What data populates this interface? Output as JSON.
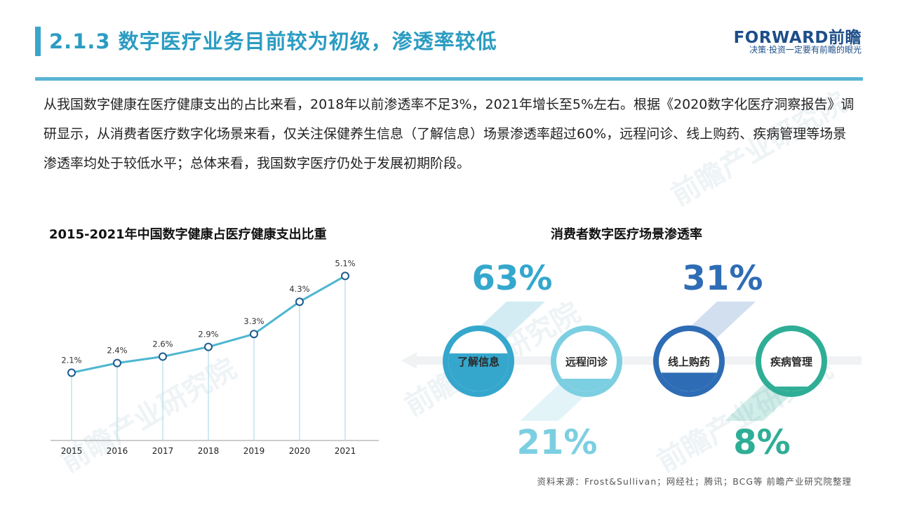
{
  "header": {
    "title": "2.1.3 数字医疗业务目前较为初级，渗透率较低",
    "logo_main": "FORWARD前瞻",
    "logo_sub": "决策·投资一定要有前瞻的眼光"
  },
  "body": {
    "paragraph": "从我国数字健康在医疗健康支出的占比来看，2018年以前渗透率不足3%，2021年增长至5%左右。根据《2020数字化医疗洞察报告》调研显示，从消费者医疗数字化场景来看，仅关注保健养生信息（了解信息）场景渗透率超过60%，远程问诊、线上购药、疾病管理等场景渗透率均处于较低水平；总体来看，我国数字医疗仍处于发展初期阶段。"
  },
  "watermark": "前瞻产业研究院",
  "chart_data": [
    {
      "type": "line",
      "title": "2015-2021年中国数字健康占医疗健康支出比重",
      "x": [
        "2015",
        "2016",
        "2017",
        "2018",
        "2019",
        "2020",
        "2021"
      ],
      "values": [
        2.1,
        2.4,
        2.6,
        2.9,
        3.3,
        4.3,
        5.1
      ],
      "data_labels": [
        "2.1%",
        "2.4%",
        "2.6%",
        "2.9%",
        "3.3%",
        "4.3%",
        "5.1%"
      ],
      "ylim": [
        0,
        5.5
      ],
      "grid": false,
      "color": "#4db6d0"
    },
    {
      "type": "bar",
      "title": "消费者数字医疗场景渗透率",
      "categories": [
        "了解信息",
        "远程问诊",
        "线上购药",
        "疾病管理"
      ],
      "values": [
        63,
        21,
        31,
        8
      ],
      "data_labels": [
        "63%",
        "21%",
        "31%",
        "8%"
      ],
      "colors": [
        "#35a7cd",
        "#7ccfe1",
        "#2e6db5",
        "#2fae96"
      ]
    }
  ],
  "source": "资料来源：Frost&Sullivan；网经社；腾讯；BCG等 前瞻产业研究院整理"
}
